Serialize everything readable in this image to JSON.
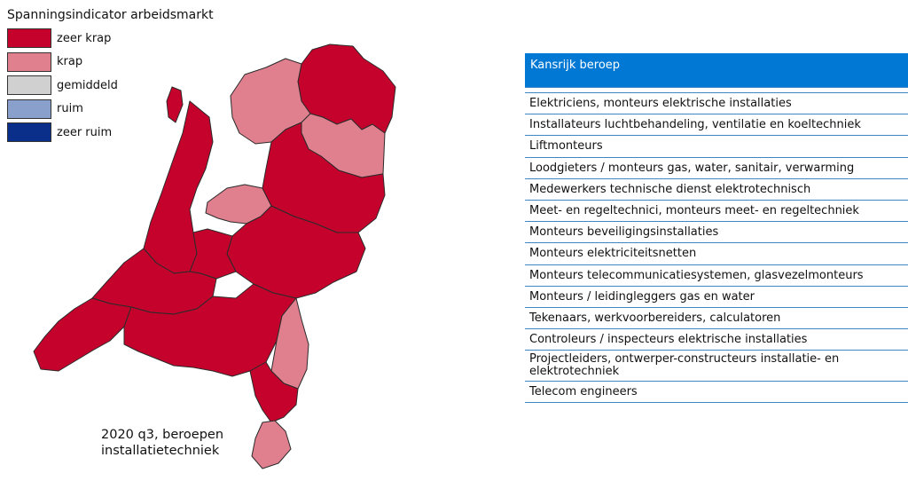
{
  "colors": {
    "zeer_krap": "#c4022c",
    "krap": "#e0808f",
    "gemiddeld": "#d0d0d0",
    "ruim": "#8aa0cc",
    "zeer_ruim": "#0a2f8a",
    "water": "#ffffff",
    "table_header": "#0078d4"
  },
  "legend": {
    "title": "Spanningsindicator arbeidsmarkt",
    "items": [
      {
        "label": "zeer krap",
        "color": "#c4022c"
      },
      {
        "label": "krap",
        "color": "#e0808f"
      },
      {
        "label": "gemiddeld",
        "color": "#d0d0d0"
      },
      {
        "label": "ruim",
        "color": "#8aa0cc"
      },
      {
        "label": "zeer ruim",
        "color": "#0a2f8a"
      }
    ]
  },
  "map": {
    "regions": [
      {
        "name": "Groningen",
        "level": "zeer krap"
      },
      {
        "name": "Friesland",
        "level": "krap"
      },
      {
        "name": "Drenthe",
        "level": "krap"
      },
      {
        "name": "Noord-Holland Noord",
        "level": "zeer krap"
      },
      {
        "name": "Texel",
        "level": "zeer krap"
      },
      {
        "name": "Flevoland",
        "level": "krap"
      },
      {
        "name": "Overijssel",
        "level": "zeer krap"
      },
      {
        "name": "Gelderland",
        "level": "zeer krap"
      },
      {
        "name": "Utrecht",
        "level": "zeer krap"
      },
      {
        "name": "Zuid-Holland",
        "level": "zeer krap"
      },
      {
        "name": "Zeeland",
        "level": "zeer krap"
      },
      {
        "name": "Noord-Brabant",
        "level": "zeer krap"
      },
      {
        "name": "Noord-Limburg",
        "level": "krap"
      },
      {
        "name": "Midden-Limburg",
        "level": "zeer krap"
      },
      {
        "name": "Zuid-Limburg",
        "level": "krap"
      }
    ]
  },
  "caption": {
    "line1": "2020 q3, beroepen",
    "line2": "installatietechniek"
  },
  "table": {
    "header": "Kansrijk beroep",
    "rows": [
      "Elektriciens, monteurs elektrische installaties",
      "Installateurs luchtbehandeling, ventilatie en koeltechniek",
      "Liftmonteurs",
      "Loodgieters / monteurs gas, water, sanitair, verwarming",
      "Medewerkers technische dienst elektrotechnisch",
      "Meet- en regeltechnici, monteurs meet- en regeltechniek",
      "Monteurs beveiligingsinstallaties",
      "Monteurs elektriciteitsnetten",
      "Monteurs telecommunicatiesystemen, glasvezelmonteurs",
      "Monteurs / leidingleggers gas en water",
      "Tekenaars, werkvoorbereiders, calculatoren",
      "Controleurs / inspecteurs elektrische installaties",
      "Projectleiders, ontwerper-constructeurs installatie-  en elektrotechniek",
      "Telecom engineers"
    ]
  }
}
